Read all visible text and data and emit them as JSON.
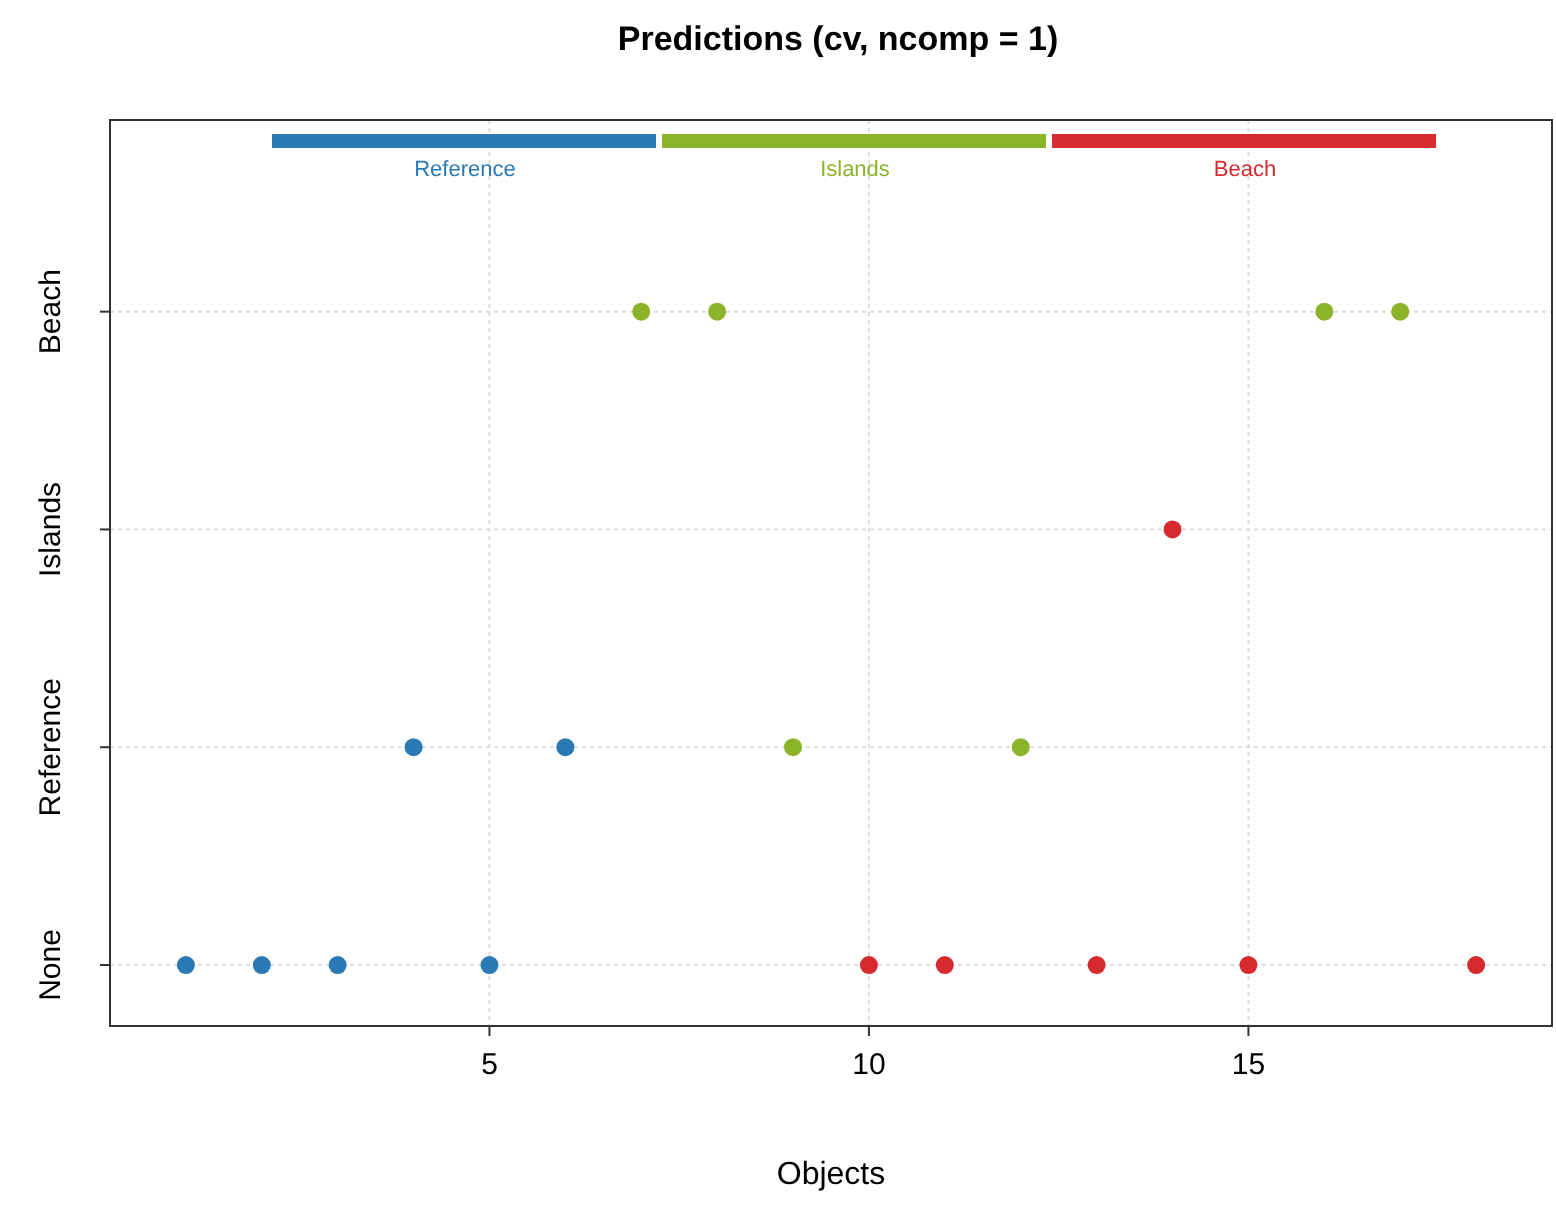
{
  "chart_data": {
    "type": "scatter",
    "orientation": "horizontal",
    "title": "Predictions (cv, ncomp = 1)",
    "xlabel": "Objects",
    "xlim": [
      0,
      19
    ],
    "xticks": [
      5,
      10,
      15
    ],
    "categories": [
      "Beach",
      "Islands",
      "Reference",
      "None"
    ],
    "series": [
      {
        "name": "Reference",
        "color": "#2a78b4",
        "x": [
          "None",
          "None",
          "None",
          "Reference",
          "None",
          "Reference"
        ],
        "values": [
          1,
          2,
          3,
          4,
          5,
          6
        ]
      },
      {
        "name": "Islands",
        "color": "#8cb42a",
        "x": [
          "Beach",
          "Beach",
          "Reference",
          "Reference",
          "Beach",
          "Beach"
        ],
        "values": [
          7,
          8,
          9,
          12,
          16,
          17
        ]
      },
      {
        "name": "Beach",
        "color": "#d62a2e",
        "x": [
          "None",
          "None",
          "None",
          "Islands",
          "None",
          "None"
        ],
        "values": [
          10,
          11,
          13,
          14,
          15,
          18
        ]
      }
    ],
    "grid": true,
    "legend": "top",
    "marker": "circle"
  }
}
